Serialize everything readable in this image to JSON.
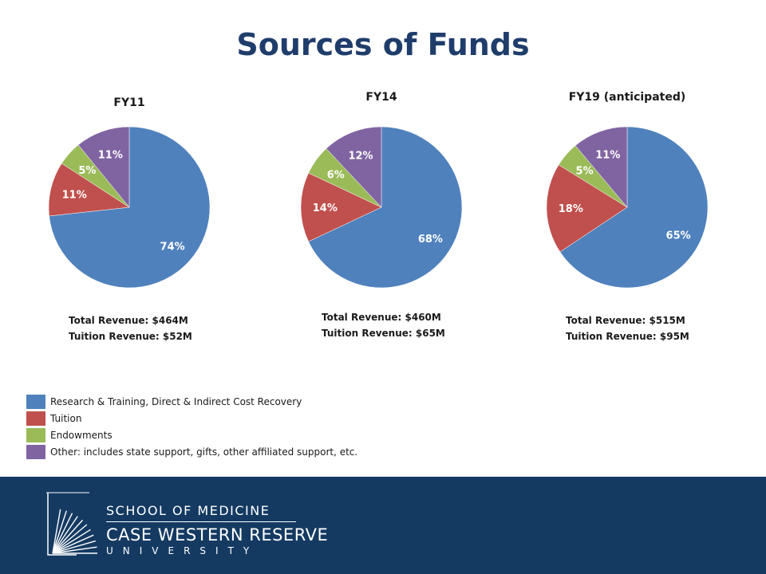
{
  "title": "Sources of Funds",
  "colors": {
    "research": "#4f81bd",
    "tuition": "#c0504d",
    "endowments": "#9bbb59",
    "other": "#8064a2",
    "footer": "#143a62",
    "title": "#1f3d6b"
  },
  "chart_data": [
    {
      "type": "pie",
      "title": "FY11",
      "slices": [
        {
          "category": "Research & Training, Direct & Indirect Cost Recovery",
          "value": 74,
          "label": "74%"
        },
        {
          "category": "Tuition",
          "value": 11,
          "label": "11%"
        },
        {
          "category": "Endowments",
          "value": 5,
          "label": "5%"
        },
        {
          "category": "Other: includes state support, gifts, other affiliated support, etc.",
          "value": 11,
          "label": "11%"
        }
      ],
      "annotations": [
        "Total Revenue: $464M",
        "Tuition Revenue: $52M"
      ]
    },
    {
      "type": "pie",
      "title": "FY14",
      "slices": [
        {
          "category": "Research & Training, Direct & Indirect Cost Recovery",
          "value": 68,
          "label": "68%"
        },
        {
          "category": "Tuition",
          "value": 14,
          "label": "14%"
        },
        {
          "category": "Endowments",
          "value": 6,
          "label": "6%"
        },
        {
          "category": "Other: includes state support, gifts, other affiliated support, etc.",
          "value": 12,
          "label": "12%"
        }
      ],
      "annotations": [
        "Total Revenue: $460M",
        "Tuition Revenue: $65M"
      ]
    },
    {
      "type": "pie",
      "title": "FY19 (anticipated)",
      "slices": [
        {
          "category": "Research & Training, Direct & Indirect Cost Recovery",
          "value": 65,
          "label": "65%"
        },
        {
          "category": "Tuition",
          "value": 18,
          "label": "18%"
        },
        {
          "category": "Endowments",
          "value": 5,
          "label": "5%"
        },
        {
          "category": "Other: includes state support, gifts, other affiliated support, etc.",
          "value": 11,
          "label": "11%"
        }
      ],
      "annotations": [
        "Total Revenue: $515M",
        "Tuition Revenue: $95M"
      ]
    }
  ],
  "legend": [
    {
      "label": "Research & Training, Direct & Indirect Cost Recovery",
      "color": "#4f81bd"
    },
    {
      "label": "Tuition",
      "color": "#c0504d"
    },
    {
      "label": "Endowments",
      "color": "#9bbb59"
    },
    {
      "label": "Other: includes state support, gifts, other affiliated support, etc.",
      "color": "#8064a2"
    }
  ],
  "footer": {
    "school": "SCHOOL OF MEDICINE",
    "institution": "CASE WESTERN RESERVE",
    "university": "UNIVERSITY"
  }
}
